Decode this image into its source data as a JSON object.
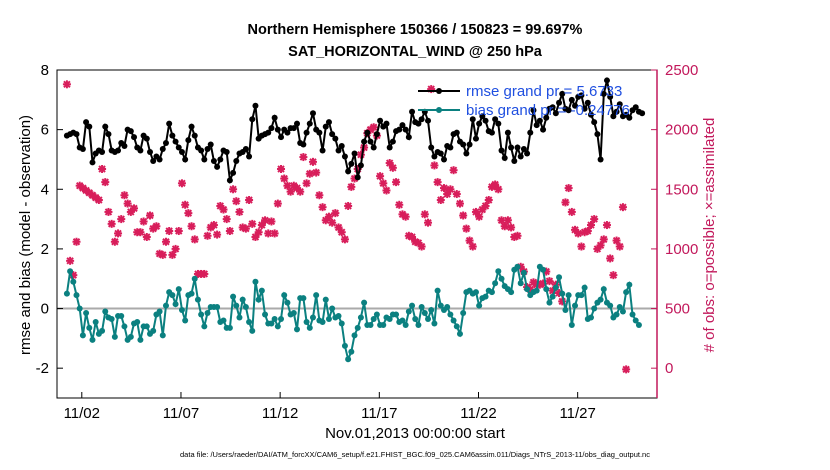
{
  "chart_data": {
    "type": "line",
    "title": "Northern Hemisphere 150366 / 150823 = 99.697%",
    "subtitle": "SAT_HORIZONTAL_WIND @ 250 hPa",
    "xlabel": "Nov.01,2013 00:00:00 start",
    "ylabel_left": "rmse and bias (model - observation)",
    "ylabel_right": "# of obs: o=possible; ×=assimilated",
    "ylim_left": [
      -3,
      8
    ],
    "ylim_right": [
      -250,
      2500
    ],
    "yticks_left": [
      -2,
      0,
      2,
      4,
      6,
      8
    ],
    "yticks_right": [
      0,
      500,
      1000,
      1500,
      2000,
      2500
    ],
    "xticks": [
      "11/02",
      "11/07",
      "11/12",
      "11/17",
      "11/22",
      "11/27"
    ],
    "xtick_days": [
      2,
      7,
      12,
      17,
      22,
      27
    ],
    "xlim_days": [
      0.75,
      31.0
    ],
    "grid": false,
    "legend_position": "top-right",
    "colors": {
      "rmse": "#000000",
      "bias": "#0b8080",
      "obs": "#d81e5b",
      "right_axis": "#c2185b",
      "legend_text": "#1f4fe0",
      "zero_line": "#aaaaaa"
    },
    "series": [
      {
        "name": "rmse grand pr = 5.6733",
        "values": [
          5.8,
          5.85,
          5.9,
          5.85,
          5.4,
          5.35,
          6.25,
          6.1,
          4.9,
          5.2,
          5.3,
          5.25,
          6.1,
          5.85,
          5.3,
          5.25,
          5.3,
          5.55,
          5.45,
          6.0,
          5.95,
          5.75,
          5.4,
          5.3,
          5.8,
          5.7,
          5.25,
          4.95,
          5.1,
          5.0,
          5.35,
          5.55,
          6.2,
          5.8,
          5.6,
          5.4,
          5.25,
          5.0,
          5.65,
          6.1,
          5.8,
          5.4,
          5.3,
          5.0,
          5.35,
          5.5,
          4.95,
          4.75,
          5.0,
          5.3,
          5.25,
          4.3,
          4.55,
          4.95,
          5.2,
          5.25,
          5.35,
          5.1,
          6.35,
          6.8,
          5.7,
          5.8,
          5.85,
          5.9,
          6.05,
          6.4,
          6.0,
          5.75,
          6.0,
          5.9,
          6.05,
          6.05,
          6.2,
          5.55,
          5.5,
          5.9,
          6.2,
          6.55,
          6.0,
          5.9,
          5.3,
          6.1,
          6.25,
          5.85,
          5.7,
          5.3,
          5.45,
          5.1,
          4.6,
          4.85,
          5.2,
          4.4,
          4.8,
          5.6,
          5.9,
          5.6,
          5.4,
          5.85,
          6.3,
          6.1,
          6.2,
          5.4,
          5.6,
          5.95,
          6.0,
          6.15,
          6.0,
          5.75,
          6.6,
          6.25,
          6.2,
          6.35,
          6.6,
          6.3,
          5.4,
          5.1,
          5.25,
          5.2,
          5.0,
          5.45,
          5.4,
          5.85,
          5.9,
          5.6,
          5.5,
          5.2,
          5.5,
          6.35,
          5.7,
          6.2,
          6.45,
          6.3,
          5.95,
          5.9,
          6.35,
          6.2,
          5.3,
          5.05,
          5.9,
          5.4,
          4.95,
          5.4,
          5.1,
          5.35,
          5.2,
          5.9,
          6.65,
          6.15,
          6.3,
          6.0,
          6.4,
          6.7,
          6.75,
          6.55,
          6.9,
          7.2,
          6.7,
          6.65,
          7.0,
          6.8,
          7.1,
          7.15,
          6.7,
          6.9,
          6.5,
          6.25,
          5.85,
          5.0,
          7.2,
          7.65,
          7.1,
          6.45,
          6.6,
          6.85,
          6.45,
          6.5,
          6.4,
          6.65,
          6.75,
          6.6,
          6.55
        ]
      },
      {
        "name": "bias grand pr = -0.24776",
        "values": [
          0.5,
          1.25,
          0.9,
          0.45,
          0.0,
          -0.9,
          -0.15,
          -0.65,
          -1.05,
          -0.45,
          -0.85,
          -0.75,
          -0.1,
          -0.3,
          -0.35,
          -0.95,
          -0.25,
          -0.25,
          -0.6,
          -1.05,
          -0.95,
          -0.5,
          -0.45,
          -1.05,
          -0.6,
          -0.6,
          -0.85,
          -0.75,
          -0.2,
          -0.1,
          -0.9,
          0.1,
          0.55,
          0.45,
          0.15,
          0.65,
          -0.05,
          -0.4,
          0.45,
          0.5,
          1.0,
          0.3,
          -0.2,
          -0.6,
          -0.15,
          0.05,
          0.05,
          0.05,
          -0.45,
          -0.4,
          -0.65,
          -0.65,
          0.4,
          0.1,
          -0.3,
          0.3,
          0.05,
          -0.45,
          -0.75,
          0.9,
          0.3,
          0.6,
          -0.2,
          -0.5,
          -0.5,
          -0.35,
          -0.6,
          -0.35,
          0.45,
          0.2,
          -0.2,
          -0.15,
          -0.7,
          0.35,
          0.35,
          -0.45,
          -0.65,
          -0.3,
          0.45,
          -0.4,
          -0.45,
          0.3,
          -0.35,
          0.0,
          -0.3,
          -0.25,
          -0.5,
          -1.25,
          -1.7,
          -1.45,
          -0.9,
          -0.65,
          -0.3,
          0.2,
          -0.55,
          -0.55,
          -0.35,
          -0.2,
          -0.55,
          -0.55,
          -0.3,
          -0.35,
          -0.2,
          -0.2,
          -0.45,
          -0.4,
          -0.55,
          -0.1,
          0.1,
          -0.35,
          -0.55,
          0.05,
          -0.15,
          -0.35,
          -0.05,
          -0.5,
          0.6,
          0.1,
          -0.05,
          0.05,
          -0.2,
          -0.4,
          -0.6,
          -0.85,
          -0.15,
          0.55,
          0.6,
          0.5,
          0.55,
          0.1,
          0.35,
          0.4,
          0.6,
          0.55,
          0.85,
          1.25,
          1.0,
          0.75,
          0.65,
          0.55,
          1.3,
          1.4,
          0.85,
          1.2,
          0.65,
          0.45,
          0.55,
          0.6,
          1.4,
          1.3,
          0.65,
          0.2,
          0.4,
          0.7,
          1.05,
          0.5,
          -0.05,
          0.45,
          -0.55,
          0.1,
          0.45,
          0.45,
          0.7,
          -0.35,
          -0.3,
          0.0,
          0.2,
          0.3,
          0.65,
          0.2,
          0.1,
          -0.3,
          -0.2,
          0.05,
          -0.1,
          0.55,
          0.8,
          -0.2,
          -0.4,
          -0.55
        ]
      },
      {
        "name": "obs",
        "values": [
          2380,
          900,
          780,
          1060,
          1530,
          1510,
          1490,
          1470,
          1450,
          1430,
          1410,
          1670,
          1560,
          1310,
          1210,
          1060,
          1130,
          1250,
          1450,
          1380,
          1310,
          1340,
          1140,
          1140,
          1230,
          1100,
          1280,
          1170,
          1190,
          960,
          950,
          1060,
          1150,
          950,
          1000,
          1150,
          1550,
          1370,
          1300,
          1190,
          1080,
          790,
          790,
          790,
          1110,
          1180,
          1200,
          1120,
          1360,
          1330,
          1250,
          1150,
          1500,
          1400,
          1310,
          1180,
          1170,
          1410,
          1210,
          1100,
          1140,
          1200,
          1240,
          1130,
          1230,
          1130,
          1380,
          1670,
          1590,
          1530,
          1480,
          1530,
          1510,
          1480,
          1770,
          1550,
          1630,
          1730,
          1640,
          1450,
          1350,
          1240,
          1270,
          1220,
          1300,
          1180,
          1140,
          1080,
          1360,
          1520,
          1590,
          1670,
          1790,
          1850,
          1970,
          2000,
          2020,
          1950,
          1610,
          1550,
          1490,
          1720,
          1680,
          1560,
          1370,
          1290,
          1270,
          1110,
          1100,
          1060,
          1050,
          1020,
          1290,
          1220,
          2340,
          1700,
          1560,
          1410,
          1510,
          1460,
          1500,
          1660,
          1460,
          1380,
          1280,
          1170,
          1070,
          1020,
          1310,
          1270,
          1330,
          1360,
          1410,
          1520,
          1540,
          1500,
          1240,
          1190,
          1240,
          1180,
          1100,
          1110,
          850,
          810,
          680,
          660,
          720,
          700,
          700,
          710,
          810,
          730,
          650,
          700,
          630,
          560,
          1390,
          1510,
          1310,
          1160,
          1130,
          1020,
          1140,
          1150,
          1200,
          1250,
          1000,
          1030,
          1080,
          1200,
          920,
          780,
          1070,
          1020,
          1350,
          -10
        ]
      }
    ],
    "footer": "data file: /Users/raeder/DAI/ATM_forcXX/CAM6_setup/f.e21.FHIST_BGC.f09_025.CAM6assim.011/Diags_NTrS_2013-11/obs_diag_output.nc"
  }
}
